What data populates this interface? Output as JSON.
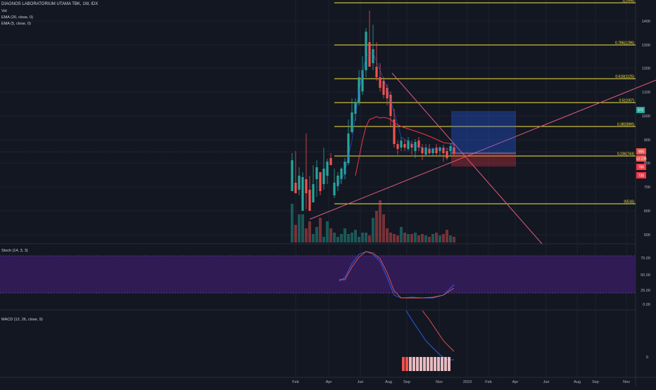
{
  "header": {
    "symbol_line": "DIAGNOS LABORATORIUM UTAMA TBK, 1W, IDX",
    "vol_label": "Vol",
    "ema1_label": "EMA (20, close, 0)",
    "ema2_label": "EMA (5, close, 0)"
  },
  "price_axis": {
    "ticks": [
      "1400",
      "1300",
      "1200",
      "1100",
      "1000",
      "900",
      "800",
      "700",
      "600",
      "500",
      "400"
    ],
    "current_price": "905",
    "countdown": "1d 23h",
    "badge_a": "780",
    "badge_b": "730",
    "level_right": "970",
    "colors": {
      "up": "#26a69a",
      "down": "#ef5350",
      "fib": "#f5e642",
      "ema": "#f23645"
    }
  },
  "fib_levels": [
    {
      "label": "1(1506)"
    },
    {
      "label": "0.786(1296)"
    },
    {
      "label": "0.618(1125)"
    },
    {
      "label": "0.5(1007)"
    },
    {
      "label": "0.382(890)"
    },
    {
      "label": "0.236(744)"
    },
    {
      "label": "0(516)"
    }
  ],
  "stoch": {
    "title": "Stoch (14, 3, 3)",
    "ticks": [
      "75.00",
      "50.00",
      "25.00",
      "0.00"
    ],
    "band_color": "#311b58"
  },
  "macd": {
    "title": "MACD (12, 26, close, 9)",
    "ticks": [
      "0"
    ]
  },
  "time_axis": {
    "labels": [
      "Feb",
      "Apr",
      "Jun",
      "Aug",
      "Sep",
      "Nov",
      "2023",
      "Feb",
      "Apr",
      "Jun",
      "Aug",
      "Sep",
      "Nov"
    ]
  }
}
